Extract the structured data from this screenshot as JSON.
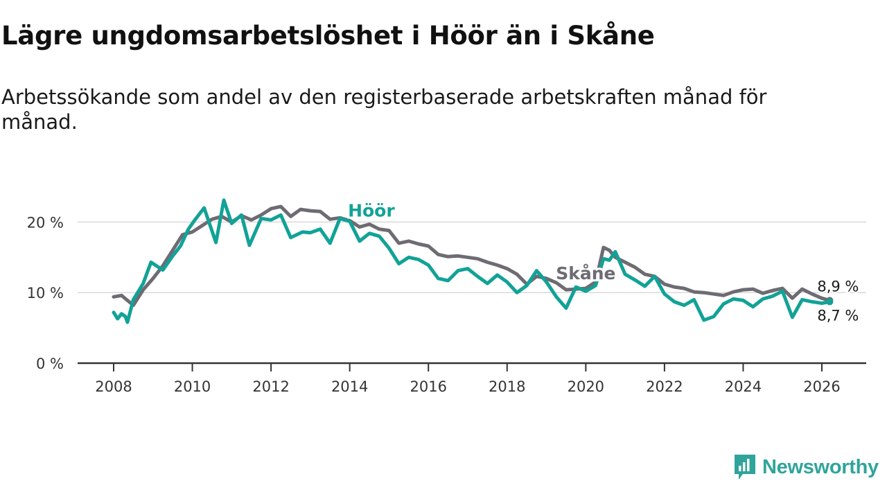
{
  "header": {
    "title": "Lägre ungdomsarbetslöshet i Höör än i Skåne",
    "subtitle": "Arbetssökande som andel av den registerbaserade arbetskraften månad för månad."
  },
  "branding": {
    "logo_text": "Newsworthy",
    "logo_color": "#2fa49b"
  },
  "chart_data": {
    "type": "line",
    "title": "Lägre ungdomsarbetslöshet i Höör än i Skåne",
    "xlabel": "",
    "ylabel": "",
    "xlim": [
      2007.2,
      2026.7
    ],
    "ylim": [
      0,
      23
    ],
    "x_ticks": [
      2008,
      2010,
      2012,
      2014,
      2016,
      2018,
      2020,
      2022,
      2024,
      2026
    ],
    "x_tick_labels": [
      "2008",
      "2010",
      "2012",
      "2014",
      "2016",
      "2018",
      "2020",
      "2022",
      "2024",
      "2026"
    ],
    "y_ticks": [
      0,
      10,
      20
    ],
    "y_tick_labels": [
      "0 %",
      "10 %",
      "20 %"
    ],
    "grid": "horizontal",
    "series": [
      {
        "name": "Skåne",
        "color": "#6e6b73",
        "label": "Skåne",
        "end_label": "8,9 %",
        "points": [
          [
            2008.0,
            9.4
          ],
          [
            2008.2,
            9.6
          ],
          [
            2008.5,
            8.2
          ],
          [
            2008.75,
            10.4
          ],
          [
            2009.0,
            12.0
          ],
          [
            2009.25,
            13.8
          ],
          [
            2009.5,
            16.0
          ],
          [
            2009.75,
            18.2
          ],
          [
            2010.0,
            18.6
          ],
          [
            2010.25,
            19.5
          ],
          [
            2010.5,
            20.4
          ],
          [
            2010.75,
            20.8
          ],
          [
            2011.0,
            20.0
          ],
          [
            2011.25,
            20.9
          ],
          [
            2011.5,
            20.3
          ],
          [
            2011.75,
            21.0
          ],
          [
            2012.0,
            21.9
          ],
          [
            2012.25,
            22.2
          ],
          [
            2012.5,
            20.8
          ],
          [
            2012.75,
            21.8
          ],
          [
            2013.0,
            21.6
          ],
          [
            2013.25,
            21.5
          ],
          [
            2013.5,
            20.4
          ],
          [
            2013.75,
            20.6
          ],
          [
            2014.0,
            20.2
          ],
          [
            2014.25,
            19.3
          ],
          [
            2014.5,
            19.7
          ],
          [
            2014.75,
            19.0
          ],
          [
            2015.0,
            18.8
          ],
          [
            2015.25,
            17.0
          ],
          [
            2015.5,
            17.3
          ],
          [
            2015.75,
            16.9
          ],
          [
            2016.0,
            16.6
          ],
          [
            2016.25,
            15.4
          ],
          [
            2016.5,
            15.1
          ],
          [
            2016.75,
            15.2
          ],
          [
            2017.0,
            15.0
          ],
          [
            2017.25,
            14.8
          ],
          [
            2017.5,
            14.3
          ],
          [
            2017.75,
            13.9
          ],
          [
            2018.0,
            13.4
          ],
          [
            2018.25,
            12.6
          ],
          [
            2018.5,
            11.2
          ],
          [
            2018.75,
            12.3
          ],
          [
            2019.0,
            12.0
          ],
          [
            2019.25,
            11.4
          ],
          [
            2019.5,
            10.4
          ],
          [
            2019.75,
            10.5
          ],
          [
            2020.0,
            10.6
          ],
          [
            2020.25,
            11.5
          ],
          [
            2020.45,
            16.4
          ],
          [
            2020.6,
            16.0
          ],
          [
            2020.75,
            15.0
          ],
          [
            2021.0,
            14.3
          ],
          [
            2021.25,
            13.6
          ],
          [
            2021.5,
            12.6
          ],
          [
            2021.75,
            12.3
          ],
          [
            2022.0,
            11.2
          ],
          [
            2022.25,
            10.8
          ],
          [
            2022.5,
            10.6
          ],
          [
            2022.75,
            10.1
          ],
          [
            2023.0,
            10.0
          ],
          [
            2023.25,
            9.8
          ],
          [
            2023.5,
            9.6
          ],
          [
            2023.75,
            10.1
          ],
          [
            2024.0,
            10.4
          ],
          [
            2024.25,
            10.5
          ],
          [
            2024.5,
            9.9
          ],
          [
            2024.75,
            10.3
          ],
          [
            2025.0,
            10.6
          ],
          [
            2025.25,
            9.2
          ],
          [
            2025.5,
            10.5
          ],
          [
            2025.75,
            9.8
          ],
          [
            2026.0,
            9.2
          ],
          [
            2026.2,
            8.9
          ]
        ]
      },
      {
        "name": "Höör",
        "color": "#12a297",
        "label": "Höör",
        "end_label": "8,7 %",
        "points": [
          [
            2008.0,
            7.2
          ],
          [
            2008.1,
            6.3
          ],
          [
            2008.2,
            7.0
          ],
          [
            2008.3,
            6.6
          ],
          [
            2008.35,
            5.8
          ],
          [
            2008.5,
            9.0
          ],
          [
            2008.75,
            11.3
          ],
          [
            2008.95,
            14.3
          ],
          [
            2009.25,
            13.2
          ],
          [
            2009.5,
            15.2
          ],
          [
            2009.7,
            16.6
          ],
          [
            2009.9,
            19.0
          ],
          [
            2010.05,
            20.2
          ],
          [
            2010.3,
            22.0
          ],
          [
            2010.6,
            17.1
          ],
          [
            2010.8,
            23.1
          ],
          [
            2011.0,
            19.8
          ],
          [
            2011.25,
            21.0
          ],
          [
            2011.45,
            16.7
          ],
          [
            2011.75,
            20.5
          ],
          [
            2012.0,
            20.3
          ],
          [
            2012.25,
            21.0
          ],
          [
            2012.5,
            17.8
          ],
          [
            2012.8,
            18.6
          ],
          [
            2013.0,
            18.5
          ],
          [
            2013.25,
            19.0
          ],
          [
            2013.5,
            17.0
          ],
          [
            2013.75,
            20.5
          ],
          [
            2014.0,
            20.1
          ],
          [
            2014.25,
            17.3
          ],
          [
            2014.5,
            18.4
          ],
          [
            2014.75,
            18.0
          ],
          [
            2015.0,
            16.3
          ],
          [
            2015.25,
            14.1
          ],
          [
            2015.5,
            15.0
          ],
          [
            2015.75,
            14.7
          ],
          [
            2016.0,
            13.9
          ],
          [
            2016.25,
            12.0
          ],
          [
            2016.5,
            11.7
          ],
          [
            2016.75,
            13.1
          ],
          [
            2017.0,
            13.4
          ],
          [
            2017.25,
            12.3
          ],
          [
            2017.5,
            11.3
          ],
          [
            2017.75,
            12.5
          ],
          [
            2018.0,
            11.5
          ],
          [
            2018.25,
            10.0
          ],
          [
            2018.5,
            11.0
          ],
          [
            2018.75,
            13.1
          ],
          [
            2019.0,
            11.5
          ],
          [
            2019.25,
            9.4
          ],
          [
            2019.5,
            7.8
          ],
          [
            2019.75,
            10.8
          ],
          [
            2020.0,
            10.2
          ],
          [
            2020.25,
            11.0
          ],
          [
            2020.45,
            14.8
          ],
          [
            2020.6,
            14.6
          ],
          [
            2020.75,
            15.8
          ],
          [
            2021.0,
            12.6
          ],
          [
            2021.25,
            11.8
          ],
          [
            2021.5,
            10.9
          ],
          [
            2021.75,
            12.3
          ],
          [
            2022.0,
            9.8
          ],
          [
            2022.25,
            8.7
          ],
          [
            2022.5,
            8.2
          ],
          [
            2022.75,
            9.0
          ],
          [
            2023.0,
            6.1
          ],
          [
            2023.25,
            6.6
          ],
          [
            2023.5,
            8.4
          ],
          [
            2023.75,
            9.1
          ],
          [
            2024.0,
            8.9
          ],
          [
            2024.25,
            8.0
          ],
          [
            2024.5,
            9.1
          ],
          [
            2024.75,
            9.5
          ],
          [
            2025.0,
            10.2
          ],
          [
            2025.25,
            6.5
          ],
          [
            2025.5,
            9.0
          ],
          [
            2025.75,
            8.7
          ],
          [
            2026.0,
            8.5
          ],
          [
            2026.2,
            8.7
          ]
        ]
      }
    ]
  }
}
